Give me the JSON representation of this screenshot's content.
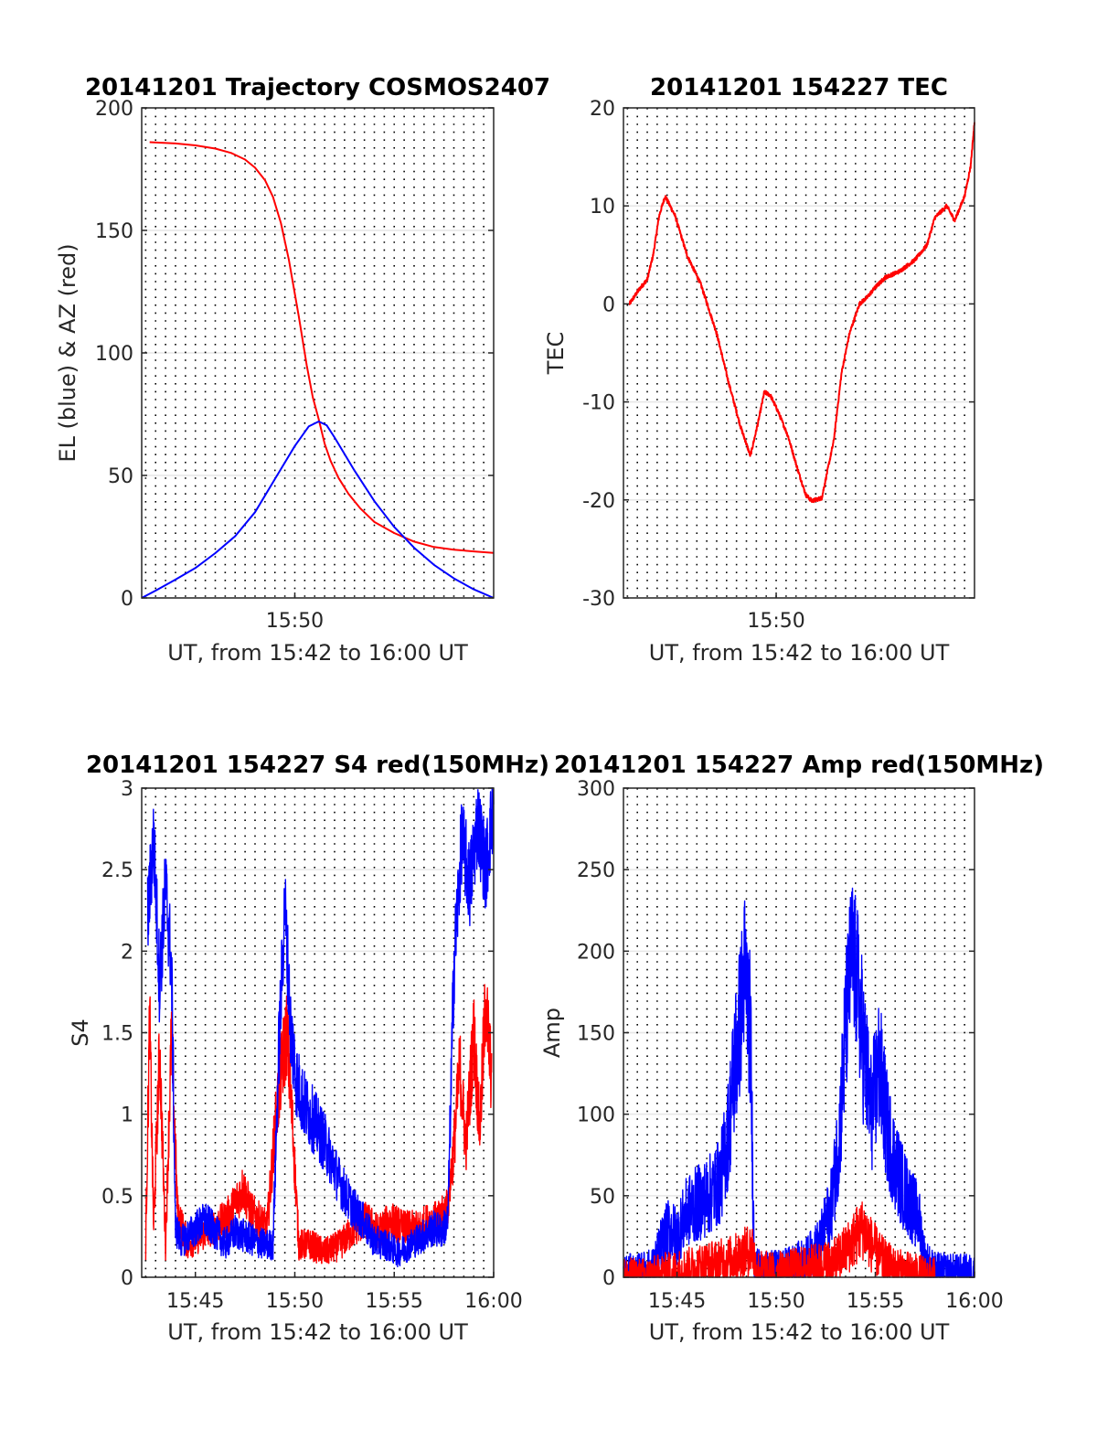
{
  "colors": {
    "el": "#0000ff",
    "az": "#ff0000",
    "tec": "#ff0000",
    "s4_red": "#ff0000",
    "s4_blue": "#0000ff",
    "amp_red": "#ff0000",
    "amp_blue": "#0000ff",
    "grid": "#e6e6e6",
    "vgrid": "#000000"
  },
  "chart_data": [
    {
      "type": "line",
      "title": "20141201 Trajectory COSMOS2407",
      "xlabel": "UT, from 15:42 to 16:00 UT",
      "ylabel": "EL (blue) & AZ (red)",
      "x_unit": "minutes after 15:00 UT",
      "xlim": [
        42.3,
        60
      ],
      "ylim": [
        0,
        200
      ],
      "xticks": [
        50
      ],
      "xtick_labels": [
        "15:50"
      ],
      "yticks": [
        0,
        50,
        100,
        150,
        200
      ],
      "ytick_labels": [
        "0",
        "50",
        "100",
        "150",
        "200"
      ],
      "grid": "horizontal light gridlines; dotted vertical lines every 30 s",
      "series": [
        {
          "name": "AZ (red)",
          "color": "#ff0000",
          "x": [
            42.7,
            44,
            45,
            46,
            46.8,
            47.5,
            48,
            48.5,
            48.9,
            49.3,
            49.7,
            50.2,
            50.6,
            50.9,
            51.2,
            51.5,
            51.8,
            52.2,
            52.7,
            53.3,
            54,
            55,
            56,
            57,
            58,
            59,
            60
          ],
          "values": [
            186,
            185.5,
            184.7,
            183.4,
            181.6,
            178.9,
            175.6,
            170.5,
            163.7,
            153,
            138,
            115,
            95,
            82,
            73,
            63,
            56,
            49,
            42.5,
            36.5,
            31,
            26.5,
            23,
            20.8,
            19.7,
            19,
            18.4
          ]
        },
        {
          "name": "EL (blue)",
          "color": "#0000ff",
          "x": [
            42.3,
            43,
            44,
            45,
            46,
            47,
            48,
            49,
            50,
            50.7,
            51.2,
            51.6,
            52,
            53,
            54,
            55,
            56,
            57,
            58,
            59,
            60
          ],
          "values": [
            0,
            3,
            7.5,
            12.2,
            18.3,
            25.2,
            35,
            48.5,
            62,
            70,
            72,
            70.5,
            65.5,
            52,
            39.5,
            29,
            20.5,
            13.5,
            8,
            3.5,
            0
          ]
        }
      ]
    },
    {
      "type": "line",
      "title": "20141201 154227 TEC",
      "xlabel": "UT, from 15:42 to 16:00 UT",
      "ylabel": "TEC",
      "x_unit": "minutes after 15:00 UT",
      "xlim": [
        42.3,
        60
      ],
      "ylim": [
        -30,
        20
      ],
      "xticks": [
        50
      ],
      "xtick_labels": [
        "15:50"
      ],
      "yticks": [
        -30,
        -20,
        -10,
        0,
        10,
        20
      ],
      "ytick_labels": [
        "-30",
        "-20",
        "-10",
        "0",
        "10",
        "20"
      ],
      "grid": "horizontal light gridlines; dotted vertical lines every 30 s",
      "series": [
        {
          "name": "",
          "color": "#ff0000",
          "x": [
            42.6,
            43.1,
            43.5,
            43.8,
            44.1,
            44.4,
            44.9,
            45.5,
            46.2,
            47,
            47.6,
            48.2,
            48.7,
            49.1,
            49.4,
            49.7,
            50.1,
            50.6,
            51.1,
            51.5,
            51.8,
            52.3,
            52.9,
            53.3,
            53.7,
            54.2,
            54.6,
            55.0,
            55.5,
            56.2,
            57.0,
            57.6,
            58.0,
            58.6,
            59.0,
            59.5,
            59.8,
            60.0
          ],
          "values": [
            0,
            1.5,
            2.5,
            5,
            9,
            11,
            9,
            5,
            2,
            -3,
            -8,
            -12.5,
            -15.5,
            -12,
            -9,
            -9.3,
            -11,
            -13.5,
            -17,
            -19.5,
            -20.1,
            -19.8,
            -14,
            -7,
            -3,
            0,
            0.7,
            1.7,
            2.7,
            3.3,
            4.5,
            6,
            8.8,
            10,
            8.5,
            11,
            14,
            18.5
          ]
        }
      ]
    },
    {
      "type": "line",
      "title": "20141201 154227 S4 red(150MHz)",
      "xlabel": "UT, from 15:42 to 16:00 UT",
      "ylabel": "S4",
      "x_unit": "minutes after 15:00 UT",
      "xlim": [
        42.3,
        60
      ],
      "ylim": [
        0,
        3
      ],
      "xticks": [
        45,
        50,
        55,
        60
      ],
      "xtick_labels": [
        "15:45",
        "15:50",
        "15:55",
        "16:00"
      ],
      "yticks": [
        0,
        0.5,
        1,
        1.5,
        2,
        2.5,
        3
      ],
      "ytick_labels": [
        "0",
        "0.5",
        "1",
        "1.5",
        "2",
        "2.5",
        "3"
      ],
      "grid": "horizontal light gridlines; dotted vertical lines every 30 s",
      "series": [
        {
          "name": "",
          "color": "#ff0000",
          "x": [
            42.5,
            42.7,
            42.9,
            43.2,
            43.5,
            43.8,
            44.1,
            44.6,
            45.2,
            45.8,
            46.5,
            47.0,
            47.4,
            47.8,
            48.2,
            48.6,
            49.0,
            49.3,
            49.6,
            49.9,
            50.2,
            50.8,
            51.5,
            52.3,
            53.0,
            53.6,
            54.2,
            54.8,
            55.5,
            56.2,
            56.8,
            57.3,
            57.7,
            58.0,
            58.3,
            58.6,
            59.0,
            59.3,
            59.6,
            59.9
          ],
          "values": [
            0.2,
            1.6,
            0.3,
            1.4,
            0.2,
            1.5,
            0.4,
            0.2,
            0.25,
            0.3,
            0.35,
            0.45,
            0.55,
            0.4,
            0.35,
            0.3,
            0.9,
            1.25,
            1.5,
            0.9,
            0.2,
            0.2,
            0.15,
            0.2,
            0.3,
            0.35,
            0.28,
            0.35,
            0.3,
            0.3,
            0.35,
            0.35,
            0.45,
            0.8,
            1.3,
            0.8,
            1.5,
            0.9,
            1.7,
            1.2
          ]
        },
        {
          "name": "",
          "color": "#0000ff",
          "x": [
            42.6,
            42.9,
            43.2,
            43.5,
            43.8,
            44.0,
            44.3,
            44.6,
            45.0,
            45.5,
            46.0,
            46.5,
            47.0,
            47.5,
            48.0,
            48.5,
            48.9,
            49.2,
            49.5,
            49.8,
            50.1,
            50.5,
            51.0,
            51.6,
            52.2,
            52.8,
            53.4,
            54.0,
            54.6,
            55.2,
            55.8,
            56.4,
            57.0,
            57.4,
            57.7,
            58.0,
            58.4,
            58.8,
            59.2,
            59.6,
            60.0
          ],
          "values": [
            2.2,
            2.7,
            1.8,
            2.4,
            1.9,
            0.3,
            0.22,
            0.25,
            0.3,
            0.35,
            0.28,
            0.2,
            0.28,
            0.25,
            0.22,
            0.2,
            0.2,
            1.4,
            2.3,
            1.5,
            1.2,
            1.05,
            0.95,
            0.8,
            0.6,
            0.45,
            0.35,
            0.22,
            0.2,
            0.15,
            0.2,
            0.25,
            0.3,
            0.28,
            0.35,
            1.9,
            2.7,
            2.4,
            2.8,
            2.5,
            2.9
          ]
        }
      ]
    },
    {
      "type": "line",
      "title": "20141201 154227 Amp red(150MHz)",
      "xlabel": "UT, from 15:42 to 16:00 UT",
      "ylabel": "Amp",
      "x_unit": "minutes after 15:00 UT",
      "xlim": [
        42.3,
        60
      ],
      "ylim": [
        0,
        300
      ],
      "xticks": [
        45,
        50,
        55,
        60
      ],
      "xtick_labels": [
        "15:45",
        "15:50",
        "15:55",
        "16:00"
      ],
      "yticks": [
        0,
        50,
        100,
        150,
        200,
        250,
        300
      ],
      "ytick_labels": [
        "0",
        "50",
        "100",
        "150",
        "200",
        "250",
        "300"
      ],
      "grid": "horizontal light gridlines; dotted vertical lines every 30 s",
      "series": [
        {
          "name": "",
          "color": "#0000ff",
          "x": [
            42.3,
            43.0,
            43.8,
            44.2,
            44.6,
            45.0,
            45.5,
            46.0,
            46.6,
            47.2,
            47.6,
            47.9,
            48.2,
            48.4,
            48.7,
            48.9,
            49.5,
            50.5,
            51.5,
            52.2,
            52.8,
            53.2,
            53.5,
            53.8,
            54.1,
            54.4,
            54.8,
            55.2,
            55.6,
            56.0,
            56.4,
            56.8,
            57.2,
            57.5,
            58.0,
            59.0,
            60.0
          ],
          "values": [
            2,
            2,
            5,
            20,
            30,
            25,
            40,
            45,
            50,
            60,
            90,
            130,
            160,
            190,
            150,
            5,
            3,
            5,
            10,
            20,
            45,
            90,
            150,
            200,
            180,
            140,
            100,
            130,
            90,
            70,
            55,
            45,
            35,
            10,
            3,
            2,
            2
          ]
        },
        {
          "name": "",
          "color": "#ff0000",
          "x": [
            42.3,
            43.5,
            44.5,
            45.5,
            46.5,
            47.5,
            48.3,
            48.8,
            49.0,
            50.0,
            51.0,
            52.0,
            53.0,
            53.6,
            54.0,
            54.4,
            54.8,
            55.4,
            56.0,
            57.0,
            58.0
          ],
          "values": [
            0,
            0,
            3,
            5,
            8,
            10,
            14,
            18,
            4,
            3,
            5,
            7,
            10,
            18,
            25,
            30,
            20,
            10,
            5,
            2,
            0
          ]
        }
      ]
    }
  ]
}
